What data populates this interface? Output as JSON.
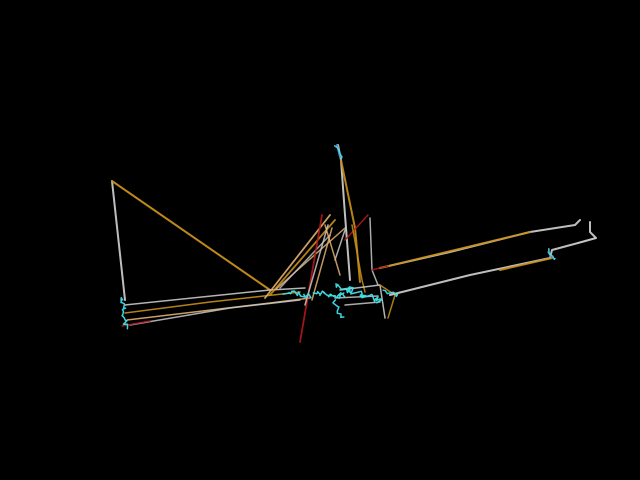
{
  "scene": {
    "background": "#000000",
    "palette": {
      "white": "#c8c8c8",
      "gold": "#c8901a",
      "peach": "#e0b070",
      "red": "#b01818",
      "cyan": "#40e0e8",
      "blue": "#6080c8"
    }
  }
}
